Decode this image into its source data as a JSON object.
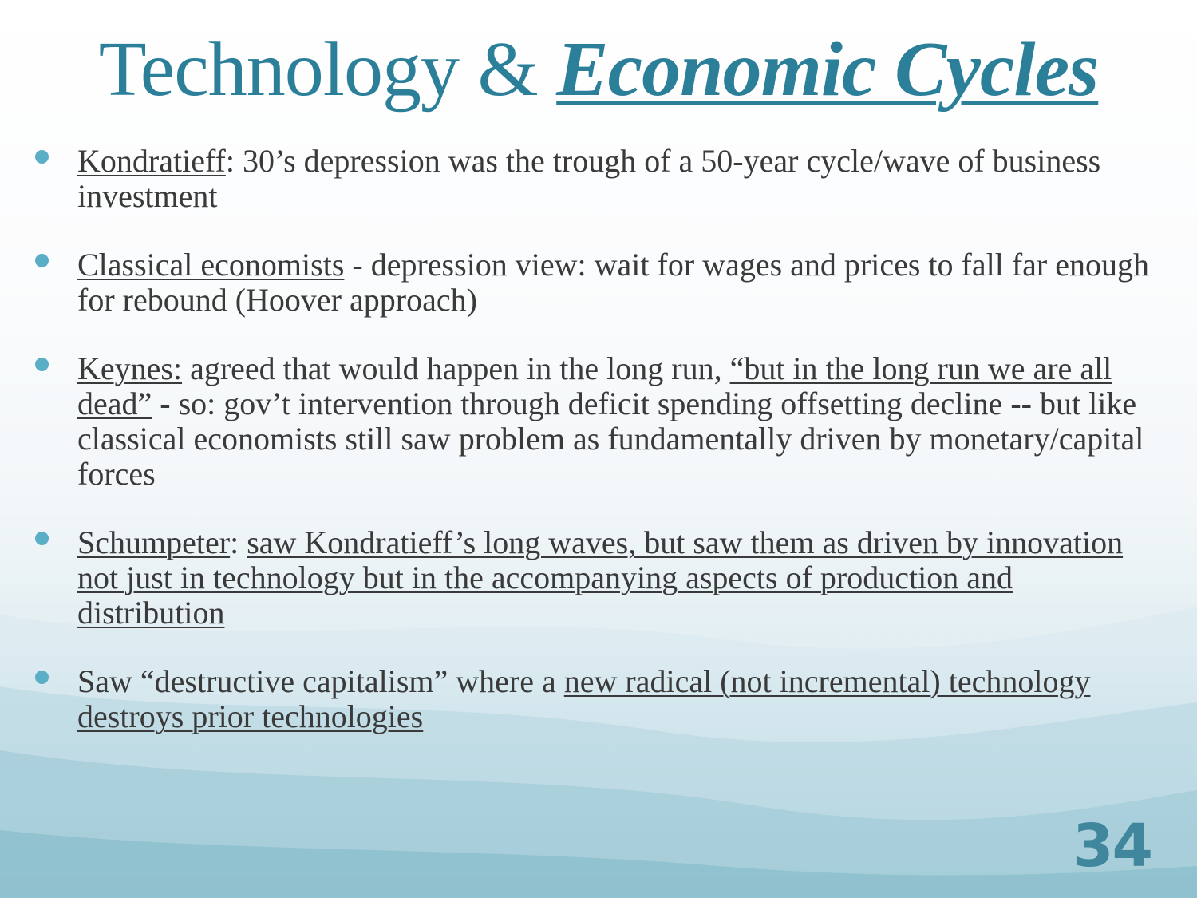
{
  "slide": {
    "title_plain": "Technology & ",
    "title_emphasis": "Economic Cycles",
    "page_number": "34"
  },
  "bullets": [
    {
      "parts": [
        {
          "text": "Kondratieff",
          "underline": true
        },
        {
          "text": ": 30’s depression was the trough of a 50-year cycle/wave of business investment",
          "underline": false
        }
      ]
    },
    {
      "parts": [
        {
          "text": "Classical economists",
          "underline": true
        },
        {
          "text": " - depression view: wait for wages and prices to fall far enough for rebound (Hoover approach)",
          "underline": false
        }
      ]
    },
    {
      "parts": [
        {
          "text": " ",
          "underline": false
        },
        {
          "text": "Keynes:",
          "underline": true
        },
        {
          "text": " agreed that would happen in the long run, ",
          "underline": false
        },
        {
          "text": "“but in the long run we are all dead”",
          "underline": true
        },
        {
          "text": " - so: gov’t intervention through deficit spending offsetting decline -- but like classical economists still saw problem as fundamentally driven by  monetary/capital forces",
          "underline": false
        }
      ]
    },
    {
      "parts": [
        {
          "text": "Schumpeter",
          "underline": true
        },
        {
          "text": ": ",
          "underline": false
        },
        {
          "text": "saw Kondratieff’s long waves, but saw them as driven by innovation not just in technology but in the accompanying aspects of production and distribution",
          "underline": true
        }
      ]
    },
    {
      "parts": [
        {
          "text": "Saw “destructive capitalism” where a ",
          "underline": false
        },
        {
          "text": "new radical (not incremental) technology destroys prior technologies",
          "underline": true
        }
      ]
    }
  ],
  "colors": {
    "title": "#2b7f99",
    "body_text": "#3a3a3a",
    "bullet_dot": "#5aaec6",
    "page_number": "#2f7a92"
  }
}
